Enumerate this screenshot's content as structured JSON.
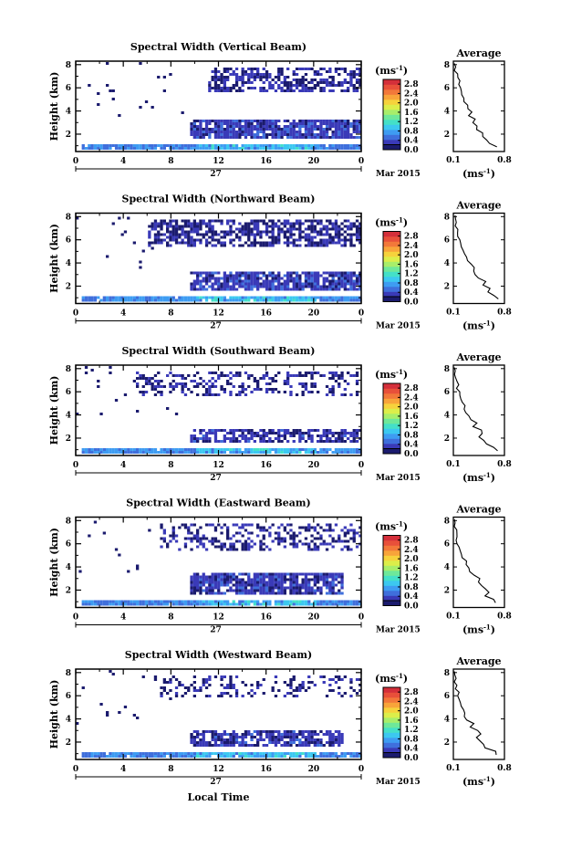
{
  "chart_data": {
    "type": "heatmap",
    "figure_xlabel": "Local Time",
    "date_label": "Mar 2015",
    "day_label": "27",
    "heatmap_x_ticks": [
      "0",
      "4",
      "8",
      "12",
      "16",
      "20",
      "0"
    ],
    "heatmap_xlim": [
      0,
      24
    ],
    "height_ylabel": "Height (km)",
    "height_ticks": [
      "2",
      "4",
      "6",
      "8"
    ],
    "height_ylim": [
      0.5,
      8.3
    ],
    "colorbar": {
      "unit": "(ms",
      "unit_sup": "-1",
      "unit_close": ")",
      "ticks": [
        "0.0",
        "0.4",
        "0.8",
        "1.2",
        "1.6",
        "2.0",
        "2.4",
        "2.8"
      ],
      "range": [
        0,
        3.0
      ],
      "colors": [
        "#1b1b6e",
        "#3a3ab8",
        "#3f6fdc",
        "#3e9cf2",
        "#3cc8f0",
        "#44e0c8",
        "#6ee89a",
        "#a8ee6a",
        "#dcee4a",
        "#f6d23c",
        "#f8a43a",
        "#f2783a",
        "#e8503a",
        "#d42f3a"
      ]
    },
    "average_title": "Average",
    "average_xlabel": "(ms",
    "average_xlabel_sup": "-1",
    "average_xlabel_close": ")",
    "average_x_ticks": [
      "0.1",
      "0.8"
    ],
    "average_xlim": [
      0.1,
      0.8
    ],
    "panels": [
      {
        "title": "Spectral Width (Vertical Beam)",
        "sparse_upper": true,
        "bands": [
          {
            "y": [
              0.7,
              1.2
            ],
            "x": [
              0.5,
              24
            ],
            "w": 0.55,
            "density": 0.95
          },
          {
            "y": [
              1.8,
              3.3
            ],
            "x": [
              9.5,
              24
            ],
            "w": 0.25,
            "density": 0.85
          },
          {
            "y": [
              5.8,
              7.8
            ],
            "x": [
              11,
              24
            ],
            "w": 0.15,
            "density": 0.55
          }
        ],
        "average": {
          "height": [
            0.9,
            1.2,
            1.5,
            1.8,
            2.1,
            2.4,
            2.7,
            3.0,
            3.3,
            3.6,
            3.9,
            4.2,
            4.5,
            4.8,
            5.1,
            5.4,
            5.7,
            6.0,
            6.3,
            6.6,
            6.9,
            7.2,
            7.5,
            7.8,
            8.1
          ],
          "width": [
            0.72,
            0.62,
            0.55,
            0.5,
            0.48,
            0.45,
            0.42,
            0.4,
            0.38,
            0.36,
            0.33,
            0.3,
            0.28,
            0.26,
            0.24,
            0.22,
            0.21,
            0.2,
            0.18,
            0.17,
            0.15,
            0.14,
            0.13,
            0.12,
            0.12
          ]
        }
      },
      {
        "title": "Spectral Width (Northward Beam)",
        "sparse_upper": true,
        "bands": [
          {
            "y": [
              0.7,
              1.2
            ],
            "x": [
              0.5,
              24
            ],
            "w": 0.6,
            "density": 0.95
          },
          {
            "y": [
              1.8,
              3.3
            ],
            "x": [
              9.5,
              24
            ],
            "w": 0.25,
            "density": 0.85
          },
          {
            "y": [
              5.6,
              7.8
            ],
            "x": [
              6,
              24
            ],
            "w": 0.12,
            "density": 0.6
          }
        ],
        "average": {
          "height": [
            0.9,
            1.2,
            1.5,
            1.8,
            2.1,
            2.4,
            2.7,
            3.0,
            3.3,
            3.6,
            3.9,
            4.2,
            4.5,
            4.8,
            5.1,
            5.4,
            5.7,
            6.0,
            6.3,
            6.6,
            6.9,
            7.2,
            7.5,
            7.8,
            8.1
          ],
          "width": [
            0.74,
            0.66,
            0.58,
            0.55,
            0.52,
            0.5,
            0.48,
            0.44,
            0.4,
            0.36,
            0.33,
            0.3,
            0.28,
            0.25,
            0.23,
            0.21,
            0.2,
            0.18,
            0.17,
            0.16,
            0.15,
            0.14,
            0.13,
            0.12,
            0.12
          ]
        }
      },
      {
        "title": "Spectral Width (Southward Beam)",
        "sparse_upper": true,
        "bands": [
          {
            "y": [
              0.7,
              1.2
            ],
            "x": [
              0.5,
              24
            ],
            "w": 0.6,
            "density": 0.95
          },
          {
            "y": [
              1.8,
              3.0
            ],
            "x": [
              9.5,
              24
            ],
            "w": 0.2,
            "density": 0.7
          },
          {
            "y": [
              5.8,
              7.8
            ],
            "x": [
              5,
              24
            ],
            "w": 0.12,
            "density": 0.35
          }
        ],
        "average": {
          "height": [
            0.9,
            1.2,
            1.5,
            1.8,
            2.1,
            2.4,
            2.7,
            3.0,
            3.3,
            3.6,
            3.9,
            4.2,
            4.5,
            4.8,
            5.1,
            5.4,
            5.7,
            6.0,
            6.3,
            6.6,
            6.9,
            7.2,
            7.5,
            7.8,
            8.1
          ],
          "width": [
            0.73,
            0.64,
            0.57,
            0.52,
            0.5,
            0.48,
            0.46,
            0.42,
            0.38,
            0.34,
            0.31,
            0.28,
            0.26,
            0.24,
            0.22,
            0.2,
            0.19,
            0.17,
            0.16,
            0.15,
            0.14,
            0.13,
            0.12,
            0.12,
            0.11
          ]
        }
      },
      {
        "title": "Spectral Width (Eastward Beam)",
        "sparse_upper": true,
        "bands": [
          {
            "y": [
              0.7,
              1.2
            ],
            "x": [
              0.5,
              24
            ],
            "w": 0.55,
            "density": 0.95
          },
          {
            "y": [
              1.8,
              3.5
            ],
            "x": [
              9.5,
              22.5
            ],
            "w": 0.22,
            "density": 0.85
          },
          {
            "y": [
              5.6,
              7.8
            ],
            "x": [
              7,
              24
            ],
            "w": 0.12,
            "density": 0.4
          }
        ],
        "average": {
          "height": [
            0.9,
            1.2,
            1.5,
            1.8,
            2.1,
            2.4,
            2.7,
            3.0,
            3.3,
            3.6,
            3.9,
            4.2,
            4.5,
            4.8,
            5.1,
            5.4,
            5.7,
            6.0,
            6.3,
            6.6,
            6.9,
            7.2,
            7.5,
            7.8,
            8.1
          ],
          "width": [
            0.7,
            0.62,
            0.56,
            0.54,
            0.52,
            0.5,
            0.46,
            0.42,
            0.38,
            0.35,
            0.32,
            0.29,
            0.26,
            0.23,
            0.21,
            0.19,
            0.18,
            0.17,
            0.16,
            0.15,
            0.14,
            0.13,
            0.12,
            0.12,
            0.11
          ]
        }
      },
      {
        "title": "Spectral Width (Westward Beam)",
        "sparse_upper": true,
        "bands": [
          {
            "y": [
              0.7,
              1.2
            ],
            "x": [
              0.5,
              24
            ],
            "w": 0.55,
            "density": 0.95
          },
          {
            "y": [
              1.8,
              3.2
            ],
            "x": [
              9.5,
              22.5
            ],
            "w": 0.22,
            "density": 0.75
          },
          {
            "y": [
              6.0,
              7.8
            ],
            "x": [
              7,
              24
            ],
            "w": 0.12,
            "density": 0.25
          }
        ],
        "average": {
          "height": [
            0.9,
            1.2,
            1.5,
            1.8,
            2.1,
            2.4,
            2.7,
            3.0,
            3.3,
            3.6,
            3.9,
            4.2,
            4.5,
            4.8,
            5.1,
            5.4,
            5.7,
            6.0,
            6.3,
            6.6,
            6.9,
            7.2,
            7.5,
            7.8,
            8.1
          ],
          "width": [
            0.71,
            0.63,
            0.57,
            0.52,
            0.48,
            0.46,
            0.43,
            0.4,
            0.37,
            0.33,
            0.3,
            0.27,
            0.25,
            0.23,
            0.21,
            0.19,
            0.18,
            0.17,
            0.16,
            0.15,
            0.14,
            0.13,
            0.12,
            0.12,
            0.11
          ]
        }
      }
    ]
  }
}
